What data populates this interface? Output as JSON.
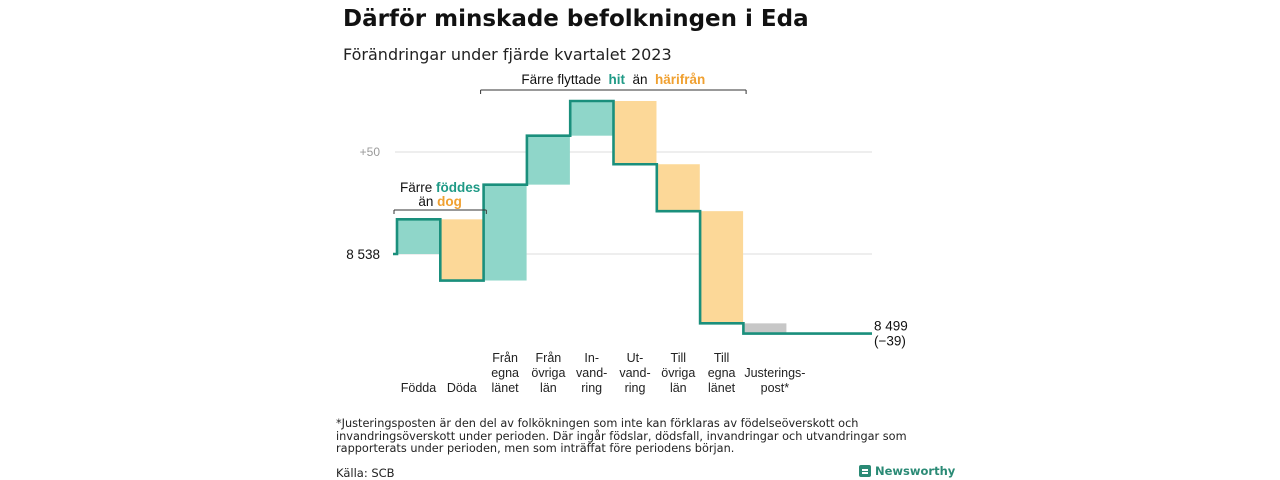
{
  "title": "Därför minskade befolkningen i Eda",
  "subtitle": "Förändringar under fjärde kvartalet 2023",
  "footnote": "*Justeringsposten är den del av folkökningen som inte kan förklaras av födelseöverskott och invandringsöverskott under perioden. Där ingår födslar, dödsfall, invandringar och utvandringar som rapporterats under perioden, men som inträffat före periodens början.",
  "source": "Källa: SCB",
  "brand": "Newsworthy",
  "chart_data": {
    "type": "waterfall",
    "start_value": 8538,
    "start_label": "8 538",
    "end_value": 8499,
    "end_label": "8 499",
    "end_change_label": "(−39)",
    "gridline_label": "+50",
    "gridline_offsets": [
      0,
      50
    ],
    "steps": [
      {
        "label": [
          "Födda"
        ],
        "change": 17,
        "kind": "inflow"
      },
      {
        "label": [
          "Döda"
        ],
        "change": -30,
        "kind": "outflow"
      },
      {
        "label": [
          "Från",
          "egna",
          "länet"
        ],
        "change": 47,
        "kind": "inflow"
      },
      {
        "label": [
          "Från",
          "övriga",
          "län"
        ],
        "change": 24,
        "kind": "inflow"
      },
      {
        "label": [
          "In-",
          "vand-",
          "ring"
        ],
        "change": 17,
        "kind": "inflow"
      },
      {
        "label": [
          "Ut-",
          "vand-",
          "ring"
        ],
        "change": -31,
        "kind": "outflow"
      },
      {
        "label": [
          "Till",
          "övriga",
          "län"
        ],
        "change": -23,
        "kind": "outflow"
      },
      {
        "label": [
          "Till",
          "egna",
          "länet"
        ],
        "change": -55,
        "kind": "outflow"
      },
      {
        "label": [
          "Justerings-",
          "post*"
        ],
        "change": -5,
        "kind": "adjustment"
      }
    ],
    "annotations": [
      {
        "parts": [
          [
            "Färre ",
            "plain"
          ],
          [
            "föddes",
            "inflow"
          ]
        ],
        "parts2": [
          [
            "än ",
            "plain"
          ],
          [
            "dog",
            "outflow"
          ]
        ],
        "from_step": 0,
        "to_step": 1
      },
      {
        "parts": [
          [
            "Färre flyttade  ",
            "plain"
          ],
          [
            "hit",
            "inflow"
          ],
          [
            "  än  ",
            "plain"
          ],
          [
            "härifrån",
            "outflow"
          ]
        ],
        "from_step": 2,
        "to_step": 7
      }
    ],
    "colors": {
      "line": "#1a8f7c",
      "inflow_fill": "#8fd6c9",
      "outflow_fill": "#fcd898",
      "adjustment_fill": "#c7c7c7",
      "inflow_text": "#1f9a86",
      "outflow_text": "#f0a030",
      "grid": "#dddddd",
      "grid_text": "#9a9a9a"
    }
  }
}
